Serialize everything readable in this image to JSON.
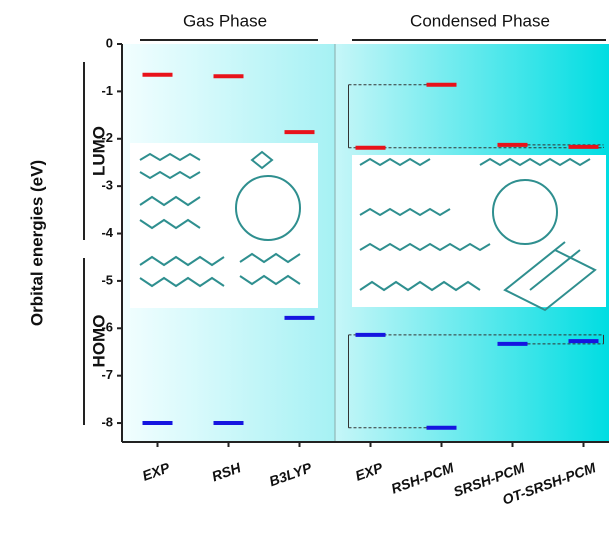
{
  "chart_data": {
    "type": "levels",
    "groups": [
      "Gas Phase",
      "Condensed Phase"
    ],
    "y_label": "Orbital energies (eV)",
    "categories": [
      "EXP",
      "RSH",
      "B3LYP",
      "EXP",
      "RSH-PCM",
      "SRSH-PCM",
      "OT-SRSH-PCM"
    ],
    "series": [
      {
        "name": "LUMO",
        "color": "#e8121a",
        "values": [
          -0.65,
          -0.68,
          -1.86,
          -2.19,
          -0.86,
          -2.13,
          -2.17
        ]
      },
      {
        "name": "HOMO",
        "color": "#1515e0",
        "values": [
          -8.0,
          -8.0,
          -5.78,
          -6.14,
          -8.1,
          -6.33,
          -6.27
        ]
      }
    ],
    "ylim": [
      -8.4,
      0
    ],
    "yticks": [
      0,
      -1,
      -2,
      -3,
      -4,
      -5,
      -6,
      -7,
      -8
    ]
  }
}
